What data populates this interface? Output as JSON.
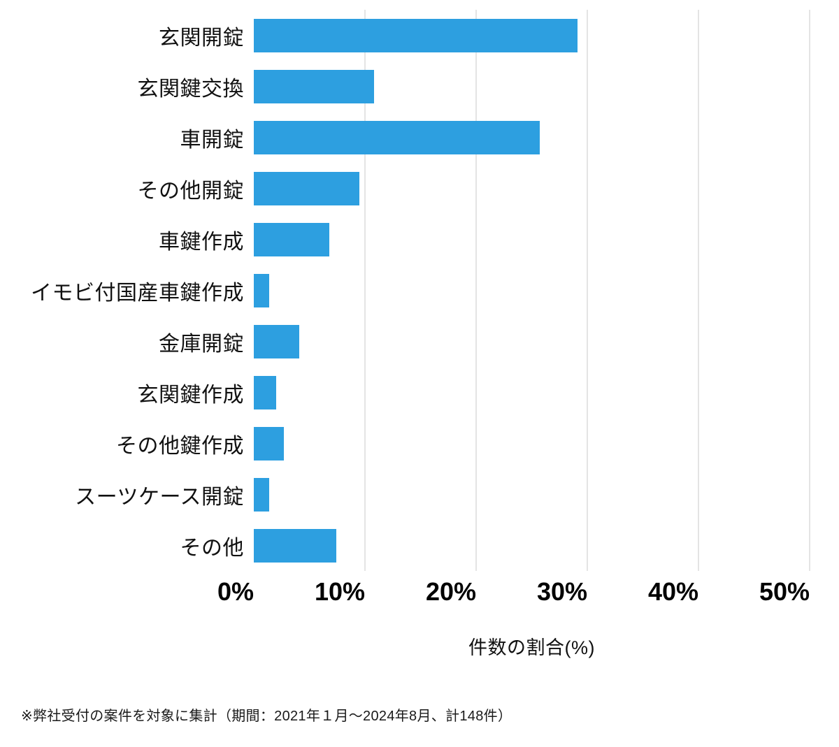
{
  "chart_data": {
    "type": "bar",
    "orientation": "horizontal",
    "categories": [
      "玄関開錠",
      "玄関鍵交換",
      "車開錠",
      "その他開錠",
      "車鍵作成",
      "イモビ付国産車鍵作成",
      "金庫開錠",
      "玄関鍵作成",
      "その他鍵作成",
      "スーツケース開錠",
      "その他"
    ],
    "values": [
      29.1,
      10.8,
      25.7,
      9.5,
      6.8,
      1.4,
      4.1,
      2.0,
      2.7,
      1.4,
      7.4
    ],
    "title": "",
    "xlabel": "件数の割合(%)",
    "ylabel": "",
    "xlim": [
      0,
      50
    ],
    "xticks": [
      0,
      10,
      20,
      30,
      40,
      50
    ],
    "xtick_labels": [
      "0%",
      "10%",
      "20%",
      "30%",
      "40%",
      "50%"
    ],
    "bar_color": "#2d9fe0",
    "grid": true,
    "gridline_color": "#e4e4e4",
    "legend": false
  },
  "footnote": "※弊社受付の案件を対象に集計（期間：2021年１月〜2024年8月、計148件）"
}
